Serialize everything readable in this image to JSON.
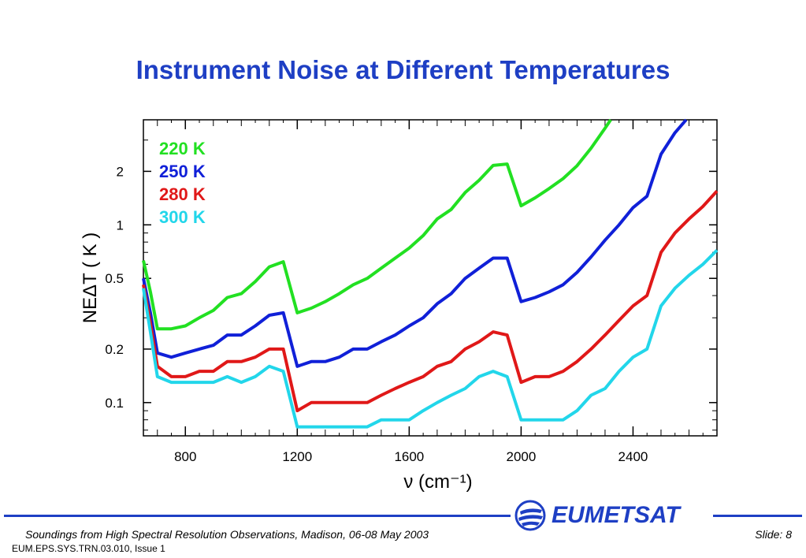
{
  "slide": {
    "title": "Instrument Noise at Different Temperatures",
    "footer_left": "Soundings from High Spectral Resolution Observations, Madison, 06-08 May 2003",
    "footer_right": "Slide: 8",
    "footer_doc": "EUM.EPS.SYS.TRN.03.010, Issue 1",
    "logo_text": "EUMETSAT",
    "accent_color": "#1e3fc4"
  },
  "chart_data": {
    "type": "line",
    "xlabel": "ν  (cm⁻¹)",
    "ylabel": "NEΔT  ( K )",
    "xlim": [
      650,
      2700
    ],
    "ylim": [
      0.065,
      3.9
    ],
    "yscale": "log",
    "x_ticks": [
      800,
      1200,
      1600,
      2000,
      2400
    ],
    "y_ticks": [
      0.1,
      0.2,
      0.5,
      1,
      2
    ],
    "y_tick_labels": [
      "0.1",
      "0.2",
      "0.5",
      "1",
      "2"
    ],
    "legend_position": "top-left",
    "series": [
      {
        "name": "220 K",
        "color": "#22e022",
        "points": [
          [
            650,
            0.63
          ],
          [
            675,
            0.42
          ],
          [
            700,
            0.26
          ],
          [
            750,
            0.26
          ],
          [
            800,
            0.27
          ],
          [
            850,
            0.3
          ],
          [
            900,
            0.33
          ],
          [
            950,
            0.39
          ],
          [
            1000,
            0.41
          ],
          [
            1050,
            0.48
          ],
          [
            1100,
            0.58
          ],
          [
            1150,
            0.62
          ],
          [
            1200,
            0.32
          ],
          [
            1250,
            0.34
          ],
          [
            1300,
            0.37
          ],
          [
            1350,
            0.41
          ],
          [
            1400,
            0.46
          ],
          [
            1450,
            0.5
          ],
          [
            1500,
            0.57
          ],
          [
            1550,
            0.65
          ],
          [
            1600,
            0.74
          ],
          [
            1650,
            0.87
          ],
          [
            1700,
            1.08
          ],
          [
            1750,
            1.22
          ],
          [
            1800,
            1.52
          ],
          [
            1850,
            1.78
          ],
          [
            1900,
            2.16
          ],
          [
            1950,
            2.2
          ],
          [
            2000,
            1.28
          ],
          [
            2050,
            1.42
          ],
          [
            2100,
            1.6
          ],
          [
            2150,
            1.82
          ],
          [
            2200,
            2.15
          ],
          [
            2250,
            2.7
          ],
          [
            2300,
            3.5
          ],
          [
            2320,
            3.9
          ]
        ]
      },
      {
        "name": "250 K",
        "color": "#1020d8",
        "points": [
          [
            650,
            0.5
          ],
          [
            675,
            0.32
          ],
          [
            700,
            0.19
          ],
          [
            750,
            0.18
          ],
          [
            800,
            0.19
          ],
          [
            850,
            0.2
          ],
          [
            900,
            0.21
          ],
          [
            950,
            0.24
          ],
          [
            1000,
            0.24
          ],
          [
            1050,
            0.27
          ],
          [
            1100,
            0.31
          ],
          [
            1150,
            0.32
          ],
          [
            1200,
            0.16
          ],
          [
            1250,
            0.17
          ],
          [
            1300,
            0.17
          ],
          [
            1350,
            0.18
          ],
          [
            1400,
            0.2
          ],
          [
            1450,
            0.2
          ],
          [
            1500,
            0.22
          ],
          [
            1550,
            0.24
          ],
          [
            1600,
            0.27
          ],
          [
            1650,
            0.3
          ],
          [
            1700,
            0.36
          ],
          [
            1750,
            0.41
          ],
          [
            1800,
            0.5
          ],
          [
            1850,
            0.57
          ],
          [
            1900,
            0.65
          ],
          [
            1950,
            0.65
          ],
          [
            2000,
            0.37
          ],
          [
            2050,
            0.39
          ],
          [
            2100,
            0.42
          ],
          [
            2150,
            0.46
          ],
          [
            2200,
            0.54
          ],
          [
            2250,
            0.66
          ],
          [
            2300,
            0.82
          ],
          [
            2350,
            1.0
          ],
          [
            2400,
            1.25
          ],
          [
            2450,
            1.45
          ],
          [
            2500,
            2.5
          ],
          [
            2550,
            3.3
          ],
          [
            2590,
            3.9
          ]
        ]
      },
      {
        "name": "280 K",
        "color": "#e01818",
        "points": [
          [
            650,
            0.46
          ],
          [
            675,
            0.28
          ],
          [
            700,
            0.16
          ],
          [
            750,
            0.14
          ],
          [
            800,
            0.14
          ],
          [
            850,
            0.15
          ],
          [
            900,
            0.15
          ],
          [
            950,
            0.17
          ],
          [
            1000,
            0.17
          ],
          [
            1050,
            0.18
          ],
          [
            1100,
            0.2
          ],
          [
            1150,
            0.2
          ],
          [
            1200,
            0.09
          ],
          [
            1250,
            0.1
          ],
          [
            1300,
            0.1
          ],
          [
            1350,
            0.1
          ],
          [
            1400,
            0.1
          ],
          [
            1450,
            0.1
          ],
          [
            1500,
            0.11
          ],
          [
            1550,
            0.12
          ],
          [
            1600,
            0.13
          ],
          [
            1650,
            0.14
          ],
          [
            1700,
            0.16
          ],
          [
            1750,
            0.17
          ],
          [
            1800,
            0.2
          ],
          [
            1850,
            0.22
          ],
          [
            1900,
            0.25
          ],
          [
            1950,
            0.24
          ],
          [
            2000,
            0.13
          ],
          [
            2050,
            0.14
          ],
          [
            2100,
            0.14
          ],
          [
            2150,
            0.15
          ],
          [
            2200,
            0.17
          ],
          [
            2250,
            0.2
          ],
          [
            2300,
            0.24
          ],
          [
            2350,
            0.29
          ],
          [
            2400,
            0.35
          ],
          [
            2450,
            0.4
          ],
          [
            2500,
            0.7
          ],
          [
            2550,
            0.9
          ],
          [
            2600,
            1.08
          ],
          [
            2650,
            1.27
          ],
          [
            2700,
            1.55
          ]
        ]
      },
      {
        "name": "300 K",
        "color": "#22d6ea",
        "points": [
          [
            650,
            0.44
          ],
          [
            675,
            0.25
          ],
          [
            700,
            0.14
          ],
          [
            750,
            0.13
          ],
          [
            800,
            0.13
          ],
          [
            850,
            0.13
          ],
          [
            900,
            0.13
          ],
          [
            950,
            0.14
          ],
          [
            1000,
            0.13
          ],
          [
            1050,
            0.14
          ],
          [
            1100,
            0.16
          ],
          [
            1150,
            0.15
          ],
          [
            1200,
            0.073
          ],
          [
            1250,
            0.073
          ],
          [
            1300,
            0.073
          ],
          [
            1350,
            0.073
          ],
          [
            1400,
            0.073
          ],
          [
            1450,
            0.073
          ],
          [
            1500,
            0.08
          ],
          [
            1550,
            0.08
          ],
          [
            1600,
            0.08
          ],
          [
            1650,
            0.09
          ],
          [
            1700,
            0.1
          ],
          [
            1750,
            0.11
          ],
          [
            1800,
            0.12
          ],
          [
            1850,
            0.14
          ],
          [
            1900,
            0.15
          ],
          [
            1950,
            0.14
          ],
          [
            2000,
            0.08
          ],
          [
            2050,
            0.08
          ],
          [
            2100,
            0.08
          ],
          [
            2150,
            0.08
          ],
          [
            2200,
            0.09
          ],
          [
            2250,
            0.11
          ],
          [
            2300,
            0.12
          ],
          [
            2350,
            0.15
          ],
          [
            2400,
            0.18
          ],
          [
            2450,
            0.2
          ],
          [
            2500,
            0.35
          ],
          [
            2550,
            0.44
          ],
          [
            2600,
            0.52
          ],
          [
            2650,
            0.6
          ],
          [
            2700,
            0.72
          ]
        ]
      }
    ]
  }
}
